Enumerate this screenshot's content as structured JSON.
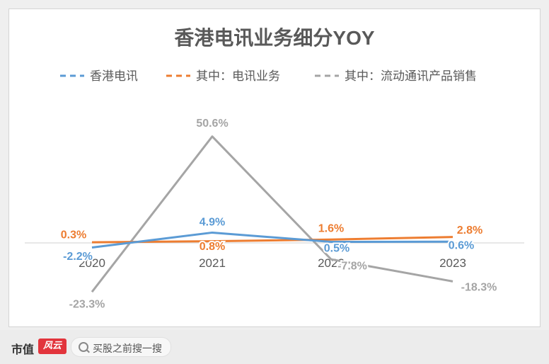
{
  "chart_data": {
    "type": "line",
    "title": "香港电讯业务细分YOY",
    "categories": [
      "2020",
      "2021",
      "2022",
      "2023"
    ],
    "series": [
      {
        "name": "香港电讯",
        "values": [
          -2.2,
          4.9,
          0.5,
          0.6
        ],
        "labels": [
          "-2.2%",
          "4.9%",
          "0.5%",
          "0.6%"
        ],
        "color": "#5b9bd5"
      },
      {
        "name": "其中：电讯业务",
        "values": [
          0.3,
          0.8,
          1.6,
          2.8
        ],
        "labels": [
          "0.3%",
          "0.8%",
          "1.6%",
          "2.8%"
        ],
        "color": "#ed7d31"
      },
      {
        "name": "其中：流动通讯产品销售",
        "values": [
          -23.3,
          50.6,
          -7.8,
          -18.3
        ],
        "labels": [
          "-23.3%",
          "50.6%",
          "-7.8%",
          "-18.3%"
        ],
        "color": "#a5a5a5"
      }
    ],
    "legend_position": "top",
    "grid": false,
    "xlabel": "",
    "ylabel": ""
  },
  "footer": {
    "brand": "市值",
    "brand_logo": "风云",
    "search_placeholder": "买股之前搜一搜"
  }
}
